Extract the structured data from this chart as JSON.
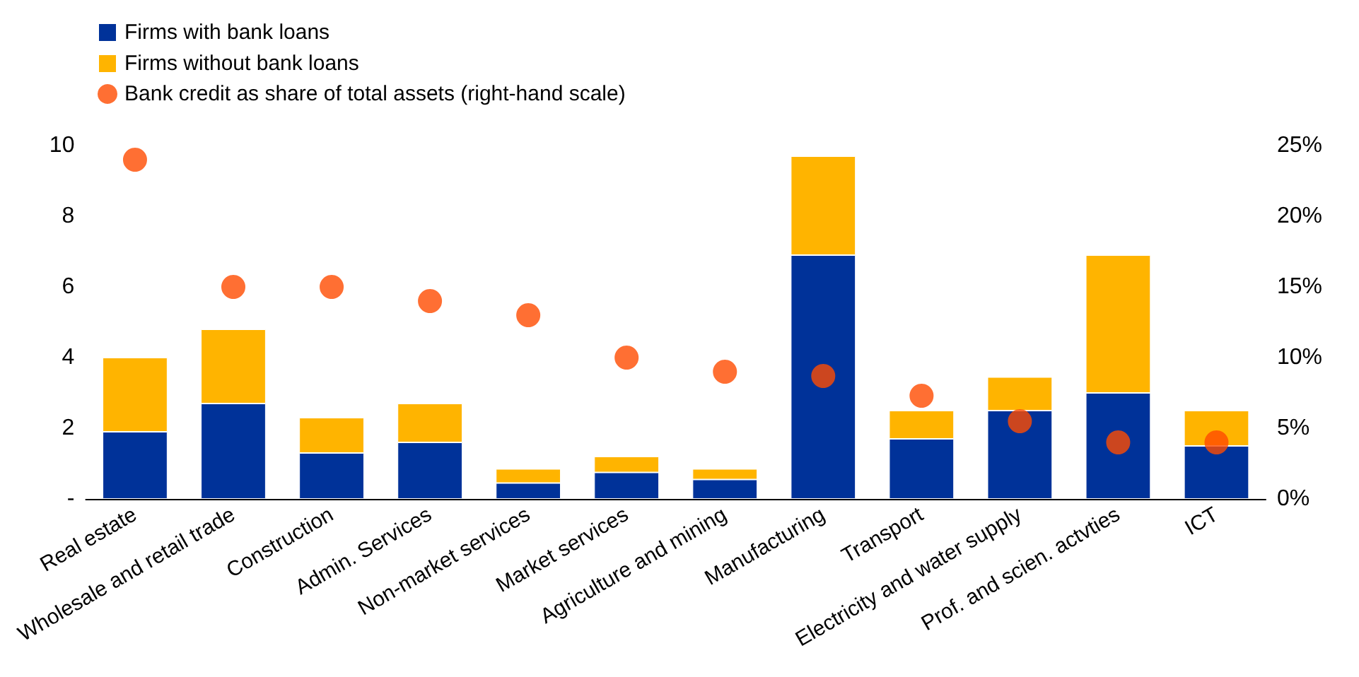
{
  "chart_data": {
    "type": "bar",
    "stacked": true,
    "categories": [
      "Real estate",
      "Wholesale and retail trade",
      "Construction",
      "Admin. Services",
      "Non-market services",
      "Market services",
      "Agriculture and mining",
      "Manufacturing",
      "Transport",
      "Electricity and water supply",
      "Prof. and scien. actvties",
      "ICT"
    ],
    "series": [
      {
        "name": "Firms with bank loans",
        "color": "#003299",
        "values": [
          1.9,
          2.7,
          1.3,
          1.6,
          0.45,
          0.75,
          0.55,
          6.9,
          1.7,
          2.5,
          3.0,
          1.5
        ]
      },
      {
        "name": "Firms without bank loans",
        "color": "#ffb400",
        "values": [
          2.1,
          2.1,
          1.0,
          1.1,
          0.4,
          0.45,
          0.3,
          2.8,
          0.8,
          0.95,
          3.9,
          1.0
        ]
      },
      {
        "name": "Bank credit as share of total assets (right-hand scale)",
        "type": "scatter",
        "axis": "y2",
        "color": "#ff4b00",
        "values": [
          24,
          15,
          15,
          14,
          13,
          10,
          9,
          8.7,
          7.3,
          5.5,
          4,
          4
        ]
      }
    ],
    "ylim": [
      0,
      10
    ],
    "yticks": [
      {
        "value": 0,
        "label": "-"
      },
      2,
      4,
      6,
      8,
      10
    ],
    "y2lim": [
      0,
      25
    ],
    "y2ticks": [
      {
        "value": 0,
        "label": "0%"
      },
      {
        "value": 5,
        "label": "5%"
      },
      {
        "value": 10,
        "label": "10%"
      },
      {
        "value": 15,
        "label": "15%"
      },
      {
        "value": 20,
        "label": "20%"
      },
      {
        "value": 25,
        "label": "25%"
      }
    ],
    "grid": false,
    "legend": "top left",
    "marker": "circle"
  }
}
